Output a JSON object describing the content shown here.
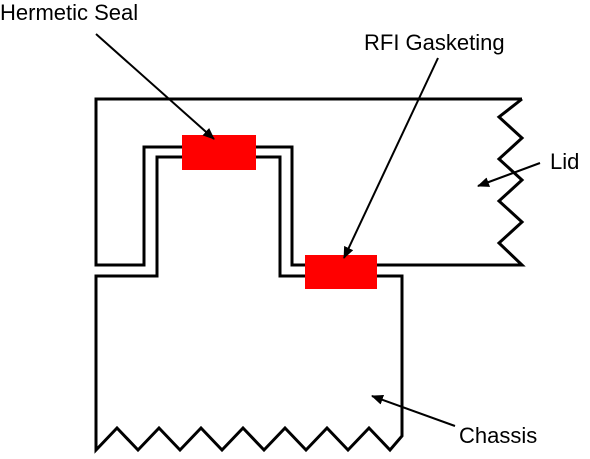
{
  "labels": {
    "hermetic_seal": "Hermetic Seal",
    "rfi_gasketing": "RFI Gasketing",
    "lid": "Lid",
    "chassis": "Chassis"
  },
  "colors": {
    "seal": "#ff0000",
    "line": "#000000",
    "background": "#ffffff"
  }
}
